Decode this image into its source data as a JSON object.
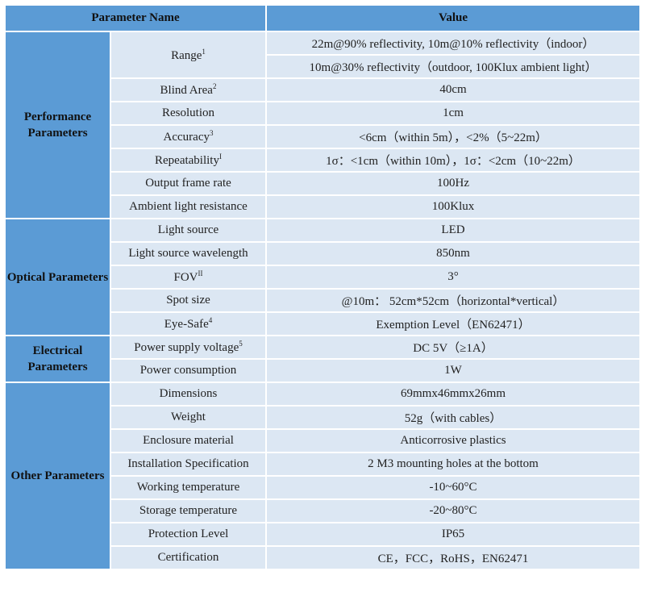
{
  "header": {
    "name": "Parameter Name",
    "value": "Value"
  },
  "colors": {
    "header": "#5b9bd5",
    "category": "#5b9bd5",
    "cell": "#dce7f3"
  },
  "groups": [
    {
      "label": "Performance Parameters",
      "rows": [
        {
          "name": "Range",
          "sup": "1",
          "values": [
            "22m@90% reflectivity, 10m@10% reflectivity（indoor）",
            "10m@30% reflectivity（outdoor, 100Klux ambient light）"
          ]
        },
        {
          "name": "Blind Area",
          "sup": "2",
          "values": [
            "40cm"
          ]
        },
        {
          "name": "Resolution",
          "sup": "",
          "values": [
            "1cm"
          ]
        },
        {
          "name": "Accuracy",
          "sup": "3",
          "values": [
            "<6cm（within 5m），<2%（5~22m）"
          ]
        },
        {
          "name": "Repeatability",
          "sup": "I",
          "values": [
            "1σ：<1cm（within 10m），1σ：<2cm（10~22m）"
          ]
        },
        {
          "name": "Output frame rate",
          "sup": "",
          "values": [
            "100Hz"
          ]
        },
        {
          "name": "Ambient light resistance",
          "sup": "",
          "values": [
            "100Klux"
          ]
        }
      ]
    },
    {
      "label": "Optical Parameters",
      "rows": [
        {
          "name": "Light source",
          "sup": "",
          "values": [
            "LED"
          ]
        },
        {
          "name": "Light source wavelength",
          "sup": "",
          "values": [
            "850nm"
          ]
        },
        {
          "name": "FOV",
          "sup": "II",
          "values": [
            "3°"
          ]
        },
        {
          "name": "Spot size",
          "sup": "",
          "values": [
            "@10m：  52cm*52cm（horizontal*vertical）"
          ]
        },
        {
          "name": "Eye-Safe",
          "sup": "4",
          "values": [
            "Exemption Level（EN62471）"
          ]
        }
      ]
    },
    {
      "label": "Electrical Parameters",
      "rows": [
        {
          "name": "Power supply voltage",
          "sup": "5",
          "values": [
            "DC 5V（≥1A）"
          ]
        },
        {
          "name": "Power consumption",
          "sup": "",
          "values": [
            "1W"
          ]
        }
      ]
    },
    {
      "label": "Other Parameters",
      "rows": [
        {
          "name": "Dimensions",
          "sup": "",
          "values": [
            "69mmx46mmx26mm"
          ]
        },
        {
          "name": "Weight",
          "sup": "",
          "values": [
            "52g（with cables）"
          ]
        },
        {
          "name": "Enclosure material",
          "sup": "",
          "values": [
            "Anticorrosive plastics"
          ]
        },
        {
          "name": "Installation Specification",
          "sup": "",
          "values": [
            "2 M3 mounting holes at the bottom"
          ]
        },
        {
          "name": "Working temperature",
          "sup": "",
          "values": [
            "-10~60°C"
          ]
        },
        {
          "name": "Storage temperature",
          "sup": "",
          "values": [
            "-20~80°C"
          ]
        },
        {
          "name": "Protection Level",
          "sup": "",
          "values": [
            "IP65"
          ]
        },
        {
          "name": "Certification",
          "sup": "",
          "values": [
            "CE，FCC，RoHS，EN62471"
          ]
        }
      ]
    }
  ]
}
